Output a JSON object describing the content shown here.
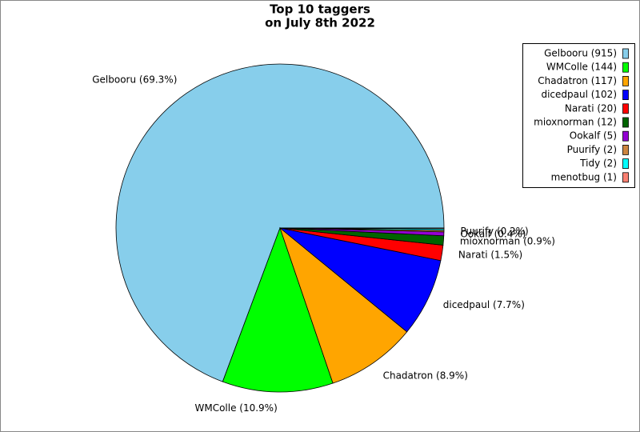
{
  "chart_data": {
    "type": "pie",
    "title": [
      "Top 10 taggers",
      "on July 8th 2022"
    ],
    "categories": [
      "Gelbooru",
      "WMColle",
      "Chadatron",
      "dicedpaul",
      "Narati",
      "mioxnorman",
      "Ookalf",
      "Puurify",
      "Tidy",
      "menotbug"
    ],
    "values": [
      915,
      144,
      117,
      102,
      20,
      12,
      5,
      2,
      2,
      1
    ],
    "value_labels": [
      "Gelbooru (69.3%)",
      "WMColle (10.9%)",
      "Chadatron (8.9%)",
      "dicedpaul (7.7%)",
      "Narati (1.5%)",
      "mioxnorman (0.9%)",
      "Ookalf (0.4%)",
      "Puurify (0.2%)",
      null,
      null
    ],
    "legend_labels": [
      "Gelbooru (915)",
      "WMColle (144)",
      "Chadatron (117)",
      "dicedpaul (102)",
      "Narati (20)",
      "mioxnorman (12)",
      "Ookalf (5)",
      "Puurify (2)",
      "Tidy (2)",
      "menotbug (1)"
    ],
    "colors": [
      "#87ceeb",
      "#00ff00",
      "#ffa500",
      "#0000ff",
      "#ff0000",
      "#006400",
      "#9400d3",
      "#cd853f",
      "#00ffff",
      "#fa8072"
    ],
    "legend": "upper right"
  }
}
